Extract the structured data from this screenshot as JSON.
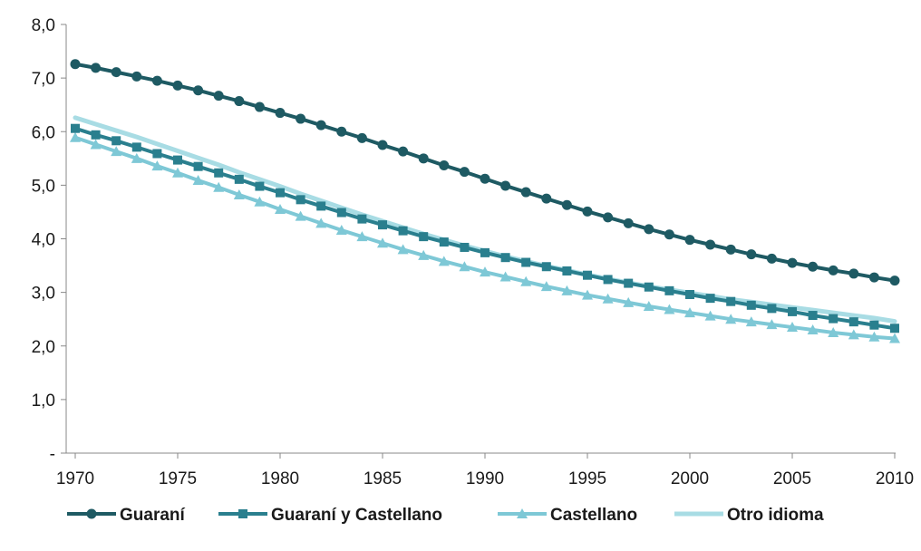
{
  "chart_data": {
    "type": "line",
    "title": "",
    "xlabel": "",
    "ylabel": "",
    "x": [
      1970,
      1971,
      1972,
      1973,
      1974,
      1975,
      1976,
      1977,
      1978,
      1979,
      1980,
      1981,
      1982,
      1983,
      1984,
      1985,
      1986,
      1987,
      1988,
      1989,
      1990,
      1991,
      1992,
      1993,
      1994,
      1995,
      1996,
      1997,
      1998,
      1999,
      2000,
      2001,
      2002,
      2003,
      2004,
      2005,
      2006,
      2007,
      2008,
      2009,
      2010
    ],
    "xticks": [
      "1970",
      "1975",
      "1980",
      "1985",
      "1990",
      "1995",
      "2000",
      "2005",
      "2010"
    ],
    "yticks": [
      "-",
      "1,0",
      "2,0",
      "3,0",
      "4,0",
      "5,0",
      "6,0",
      "7,0",
      "8,0"
    ],
    "ylim": [
      0,
      8
    ],
    "xlim": [
      1970,
      2010
    ],
    "grid": false,
    "legend_position": "bottom",
    "series": [
      {
        "name": "Guaraní",
        "color": "#1e5a63",
        "marker": "circle",
        "values": [
          7.26,
          7.19,
          7.11,
          7.03,
          6.95,
          6.86,
          6.77,
          6.67,
          6.57,
          6.46,
          6.35,
          6.24,
          6.12,
          6.0,
          5.88,
          5.75,
          5.63,
          5.5,
          5.37,
          5.25,
          5.12,
          4.99,
          4.87,
          4.75,
          4.63,
          4.51,
          4.4,
          4.29,
          4.18,
          4.08,
          3.98,
          3.89,
          3.8,
          3.71,
          3.63,
          3.55,
          3.48,
          3.41,
          3.35,
          3.28,
          3.22
        ]
      },
      {
        "name": "Guaraní y Castellano",
        "color": "#2a7f8e",
        "marker": "square",
        "values": [
          6.06,
          5.94,
          5.83,
          5.71,
          5.59,
          5.47,
          5.35,
          5.23,
          5.11,
          4.98,
          4.86,
          4.73,
          4.61,
          4.49,
          4.37,
          4.26,
          4.15,
          4.04,
          3.94,
          3.84,
          3.74,
          3.65,
          3.56,
          3.48,
          3.4,
          3.32,
          3.24,
          3.17,
          3.1,
          3.03,
          2.96,
          2.89,
          2.83,
          2.76,
          2.7,
          2.64,
          2.57,
          2.51,
          2.45,
          2.39,
          2.33
        ]
      },
      {
        "name": "Castellano",
        "color": "#7ec8d6",
        "marker": "triangle",
        "values": [
          5.89,
          5.76,
          5.63,
          5.5,
          5.36,
          5.23,
          5.09,
          4.96,
          4.82,
          4.69,
          4.55,
          4.42,
          4.29,
          4.16,
          4.04,
          3.92,
          3.8,
          3.69,
          3.58,
          3.48,
          3.38,
          3.29,
          3.2,
          3.11,
          3.03,
          2.95,
          2.88,
          2.81,
          2.74,
          2.68,
          2.62,
          2.56,
          2.5,
          2.45,
          2.4,
          2.35,
          2.3,
          2.25,
          2.21,
          2.17,
          2.14
        ]
      },
      {
        "name": "Otro idioma",
        "color": "#a8dce4",
        "marker": "none",
        "values": [
          6.26,
          6.14,
          6.02,
          5.9,
          5.77,
          5.64,
          5.51,
          5.38,
          5.24,
          5.11,
          4.98,
          4.84,
          4.71,
          4.58,
          4.45,
          4.33,
          4.21,
          4.09,
          3.98,
          3.87,
          3.77,
          3.67,
          3.58,
          3.49,
          3.41,
          3.33,
          3.25,
          3.18,
          3.11,
          3.05,
          2.99,
          2.93,
          2.87,
          2.82,
          2.77,
          2.72,
          2.67,
          2.62,
          2.57,
          2.52,
          2.46
        ]
      }
    ]
  }
}
